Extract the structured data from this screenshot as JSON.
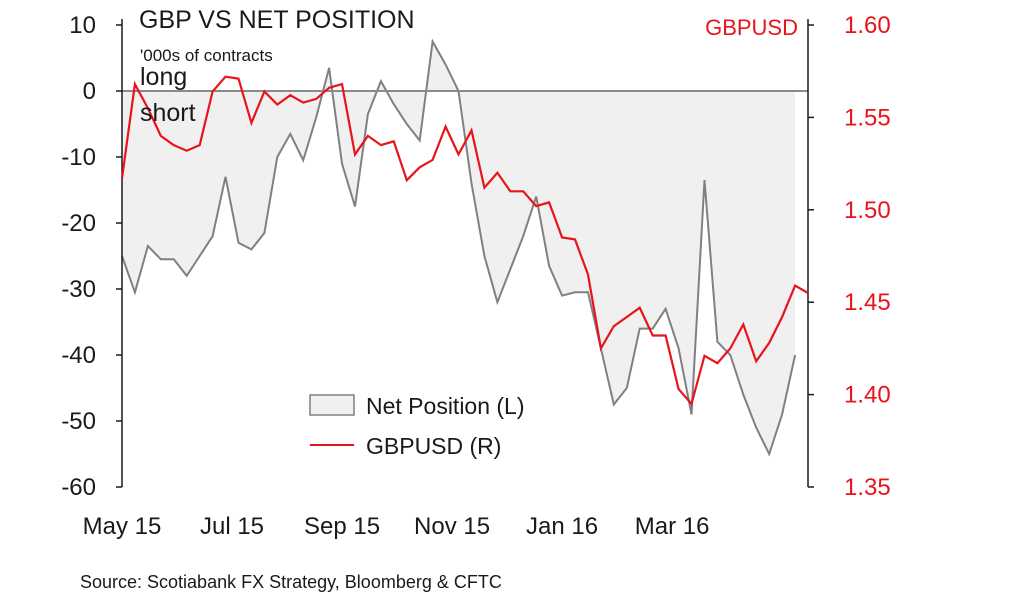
{
  "chart_data": {
    "type": "area+line",
    "title": "GBP VS NET POSITION",
    "subtitle": "'000s of contracts",
    "annotations": [
      "long",
      "short"
    ],
    "right_axis_title": "GBPUSD",
    "source": "Source: Scotiabank FX Strategy, Bloomberg & CFTC",
    "x_tick_labels": [
      "May 15",
      "Jul 15",
      "Sep 15",
      "Nov 15",
      "Jan 16",
      "Mar 16"
    ],
    "x_tick_index": [
      0,
      8.5,
      17,
      25.5,
      34,
      42.5
    ],
    "left_axis": {
      "ylim": [
        -60,
        10
      ],
      "ticks": [
        10,
        0,
        -10,
        -20,
        -30,
        -40,
        -50,
        -60
      ]
    },
    "right_axis": {
      "ylim": [
        1.35,
        1.6
      ],
      "ticks": [
        "1.60",
        "1.55",
        "1.50",
        "1.45",
        "1.40",
        "1.35"
      ]
    },
    "colors": {
      "net": "#808080",
      "net_fill": "#f0f0f0",
      "gbpusd": "#e8141b",
      "axis": "#1a1a1a",
      "zero_line": "#8a8a8a"
    },
    "legend": [
      {
        "name": "Net Position (L)",
        "kind": "area"
      },
      {
        "name": "GBPUSD (R)",
        "kind": "line"
      }
    ],
    "series": [
      {
        "name": "Net Position (L)",
        "axis": "left",
        "values": [
          -25,
          -30.5,
          -23.5,
          -25.5,
          -25.5,
          -28,
          -25,
          -22,
          -13,
          -23,
          -24,
          -21.5,
          -10,
          -6.5,
          -10.5,
          -4,
          3.5,
          -11,
          -17.5,
          -3.5,
          1.5,
          -2,
          -5,
          -7.5,
          7.5,
          4,
          0,
          -14,
          -25,
          -32,
          -27,
          -22,
          -16,
          -26.5,
          -31,
          -30.5,
          -30.5,
          -39,
          -47.5,
          -45,
          -36,
          -36,
          -33,
          -39,
          -49,
          -13.5,
          -38,
          -40,
          -46,
          -51,
          -55,
          -49,
          -40
        ]
      },
      {
        "name": "GBPUSD (R)",
        "axis": "right",
        "values": [
          1.517,
          1.568,
          1.555,
          1.54,
          1.535,
          1.532,
          1.535,
          1.564,
          1.572,
          1.571,
          1.547,
          1.564,
          1.557,
          1.562,
          1.558,
          1.56,
          1.566,
          1.568,
          1.53,
          1.54,
          1.535,
          1.537,
          1.516,
          1.523,
          1.527,
          1.545,
          1.53,
          1.543,
          1.512,
          1.52,
          1.51,
          1.51,
          1.502,
          1.504,
          1.485,
          1.484,
          1.465,
          1.425,
          1.437,
          1.442,
          1.447,
          1.432,
          1.432,
          1.403,
          1.395,
          1.421,
          1.417,
          1.425,
          1.438,
          1.418,
          1.428,
          1.442,
          1.459,
          1.455
        ]
      }
    ]
  }
}
